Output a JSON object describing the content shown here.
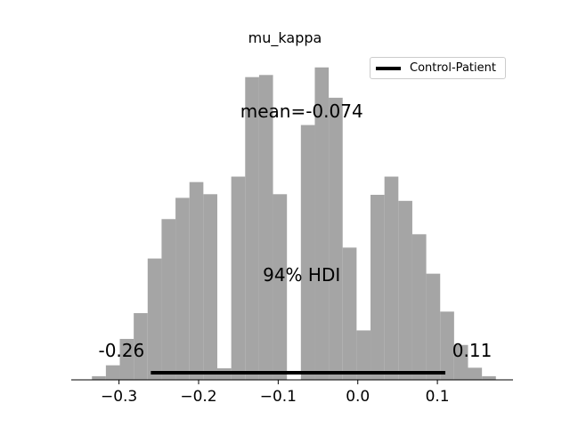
{
  "chart_data": {
    "type": "bar",
    "title": "mu_kappa",
    "xlabel": "",
    "ylabel": "",
    "xlim": [
      -0.36,
      0.195
    ],
    "ylim": [
      0,
      1.0
    ],
    "xticks": [
      -0.3,
      -0.2,
      -0.1,
      0.0,
      0.1
    ],
    "xtick_labels": [
      "−0.3",
      "−0.2",
      "−0.1",
      "0.0",
      "0.1"
    ],
    "bin_width": 0.0175,
    "bins": [
      {
        "x0": -0.334,
        "value": 0.012
      },
      {
        "x0": -0.3165,
        "value": 0.048
      },
      {
        "x0": -0.299,
        "value": 0.135
      },
      {
        "x0": -0.2815,
        "value": 0.22
      },
      {
        "x0": -0.264,
        "value": 0.4
      },
      {
        "x0": -0.2465,
        "value": 0.53
      },
      {
        "x0": -0.229,
        "value": 0.6
      },
      {
        "x0": -0.2115,
        "value": 0.652
      },
      {
        "x0": -0.194,
        "value": 0.612
      },
      {
        "x0": -0.1765,
        "value": 0.038
      },
      {
        "x0": -0.159,
        "value": 0.67
      },
      {
        "x0": -0.1415,
        "value": 0.998
      },
      {
        "x0": -0.124,
        "value": 1.005
      },
      {
        "x0": -0.1065,
        "value": 0.612
      },
      {
        "x0": -0.089,
        "value": 0.0
      },
      {
        "x0": -0.0715,
        "value": 0.84
      },
      {
        "x0": -0.054,
        "value": 1.03
      },
      {
        "x0": -0.0365,
        "value": 0.93
      },
      {
        "x0": -0.019,
        "value": 0.436
      },
      {
        "x0": -0.0015,
        "value": 0.163
      },
      {
        "x0": 0.016,
        "value": 0.61
      },
      {
        "x0": 0.0335,
        "value": 0.67
      },
      {
        "x0": 0.051,
        "value": 0.59
      },
      {
        "x0": 0.0685,
        "value": 0.48
      },
      {
        "x0": 0.086,
        "value": 0.35
      },
      {
        "x0": 0.1035,
        "value": 0.225
      },
      {
        "x0": 0.121,
        "value": 0.115
      },
      {
        "x0": 0.1385,
        "value": 0.04
      },
      {
        "x0": 0.156,
        "value": 0.012
      }
    ],
    "bar_color": "#a5a5a5",
    "hdi": {
      "low": -0.26,
      "high": 0.11,
      "low_label": "-0.26",
      "high_label": "0.11",
      "label": "94% HDI"
    },
    "mean_label": "mean=-0.074",
    "legend": {
      "label": "Control-Patient",
      "placement": "top-right"
    },
    "grid": false
  }
}
